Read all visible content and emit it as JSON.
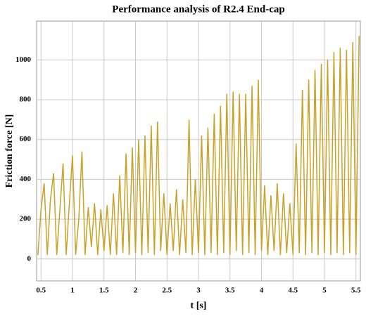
{
  "chart_data": {
    "type": "line",
    "title": "Performance analysis of R2.4 End-cap",
    "xlabel": "t [s]",
    "ylabel": "Friction force [N]",
    "x": [
      0.45,
      0.5,
      0.55,
      0.6,
      0.65,
      0.7,
      0.75,
      0.8,
      0.85,
      0.9,
      0.95,
      1.0,
      1.05,
      1.1,
      1.15,
      1.2,
      1.25,
      1.3,
      1.35,
      1.4,
      1.45,
      1.5,
      1.55,
      1.6,
      1.65,
      1.7,
      1.75,
      1.8,
      1.85,
      1.9,
      1.95,
      2.0,
      2.05,
      2.1,
      2.15,
      2.2,
      2.25,
      2.3,
      2.35,
      2.4,
      2.45,
      2.5,
      2.55,
      2.6,
      2.65,
      2.7,
      2.75,
      2.8,
      2.85,
      2.9,
      2.95,
      3.0,
      3.05,
      3.1,
      3.15,
      3.2,
      3.25,
      3.3,
      3.35,
      3.4,
      3.45,
      3.5,
      3.55,
      3.6,
      3.65,
      3.7,
      3.75,
      3.8,
      3.85,
      3.9,
      3.95,
      4.0,
      4.05,
      4.1,
      4.15,
      4.2,
      4.25,
      4.3,
      4.35,
      4.4,
      4.45,
      4.5,
      4.55,
      4.6,
      4.65,
      4.7,
      4.75,
      4.8,
      4.85,
      4.9,
      4.95,
      5.0,
      5.05,
      5.1,
      5.15,
      5.2,
      5.25,
      5.3,
      5.35,
      5.4,
      5.45,
      5.5,
      5.55
    ],
    "series": [
      {
        "name": "Friction force",
        "color": "#c9a227",
        "values": [
          20,
          250,
          380,
          20,
          300,
          430,
          20,
          250,
          480,
          20,
          280,
          520,
          20,
          200,
          540,
          20,
          260,
          60,
          280,
          20,
          250,
          40,
          270,
          20,
          330,
          20,
          420,
          30,
          530,
          20,
          560,
          30,
          600,
          20,
          620,
          30,
          670,
          20,
          690,
          40,
          330,
          20,
          280,
          40,
          350,
          20,
          300,
          30,
          700,
          20,
          400,
          30,
          620,
          20,
          660,
          30,
          730,
          20,
          770,
          30,
          830,
          20,
          840,
          40,
          830,
          20,
          830,
          30,
          870,
          20,
          900,
          40,
          370,
          20,
          320,
          40,
          380,
          20,
          330,
          30,
          280,
          20,
          580,
          30,
          850,
          20,
          900,
          30,
          950,
          20,
          980,
          30,
          1000,
          20,
          1040,
          30,
          1060,
          20,
          1050,
          30,
          1090,
          20,
          1120
        ]
      }
    ],
    "xlim": [
      0.43,
      5.57
    ],
    "ylim": [
      -110,
      1195
    ],
    "xticks": [
      0.5,
      1,
      1.5,
      2,
      2.5,
      3,
      3.5,
      4,
      4.5,
      5,
      5.5
    ],
    "yticks": [
      0,
      200,
      400,
      600,
      800,
      1000
    ],
    "grid": true
  }
}
